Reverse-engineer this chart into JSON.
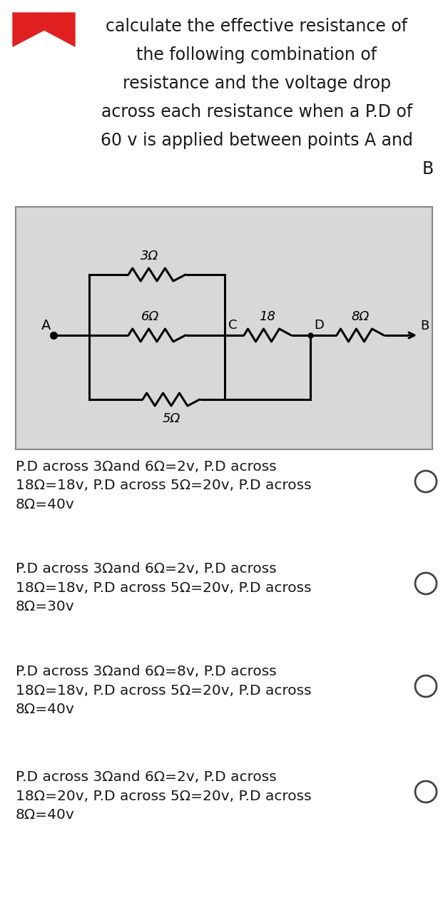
{
  "title_lines": [
    "calculate the effective resistance of",
    "the following combination of",
    "resistance and the voltage drop",
    "across each resistance when a P.D of",
    "60 v is applied between points A and",
    "B"
  ],
  "options": [
    "P.D across 3Ωand 6Ω=2v, P.D across\n18Ω=18v, P.D across 5Ω=20v, P.D across\n8Ω=40v",
    "P.D across 3Ωand 6Ω=2v, P.D across\n18Ω=18v, P.D across 5Ω=20v, P.D across\n8Ω=30v",
    "P.D across 3Ωand 6Ω=8v, P.D across\n18Ω=18v, P.D across 5Ω=20v, P.D across\n8Ω=40v",
    "P.D across 3Ωand 6Ω=2v, P.D across\n18Ω=20v, P.D across 5Ω=20v, P.D across\n8Ω=40v"
  ],
  "bg_color": "#ffffff",
  "text_color": "#1a1a1a",
  "option_font_size": 14.5,
  "title_font_size": 17.0,
  "circuit_bg": "#d8d8d8"
}
